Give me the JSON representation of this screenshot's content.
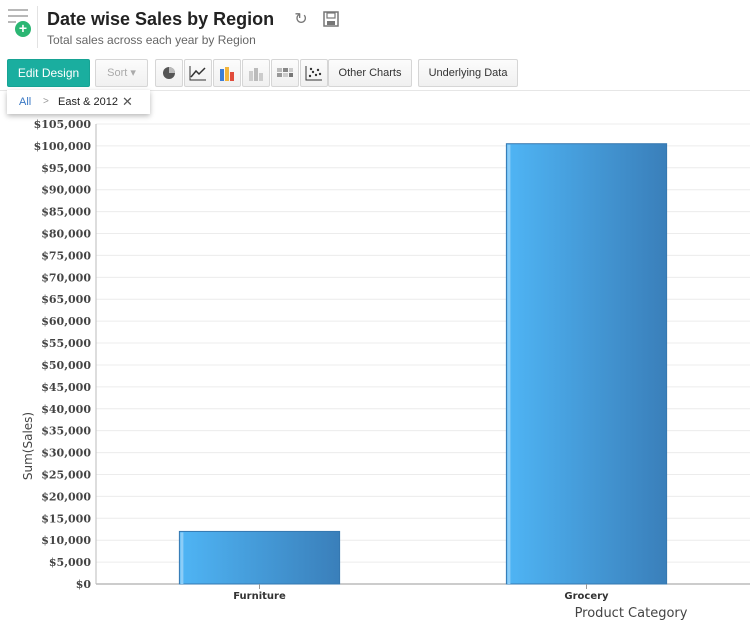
{
  "header": {
    "title": "Date wise Sales by Region",
    "subtitle": "Total sales across each year by Region"
  },
  "toolbar": {
    "edit_label": "Edit Design",
    "sort_label": "Sort",
    "other_charts_label": "Other Charts",
    "underlying_data_label": "Underlying Data"
  },
  "breadcrumb": {
    "root": "All",
    "current": "East & 2012"
  },
  "colors": {
    "accent": "#1aae9f",
    "bar_light": "#4fb5f5",
    "bar_dark": "#3a7fba"
  },
  "chart_data": {
    "type": "bar",
    "categories": [
      "Furniture",
      "Grocery"
    ],
    "values": [
      12000,
      100500
    ],
    "xlabel": "Product Category",
    "ylabel": "Sum(Sales)",
    "ylim": [
      0,
      105000
    ],
    "ytick_step": 5000,
    "ytick_prefix": "$",
    "grid": true
  }
}
